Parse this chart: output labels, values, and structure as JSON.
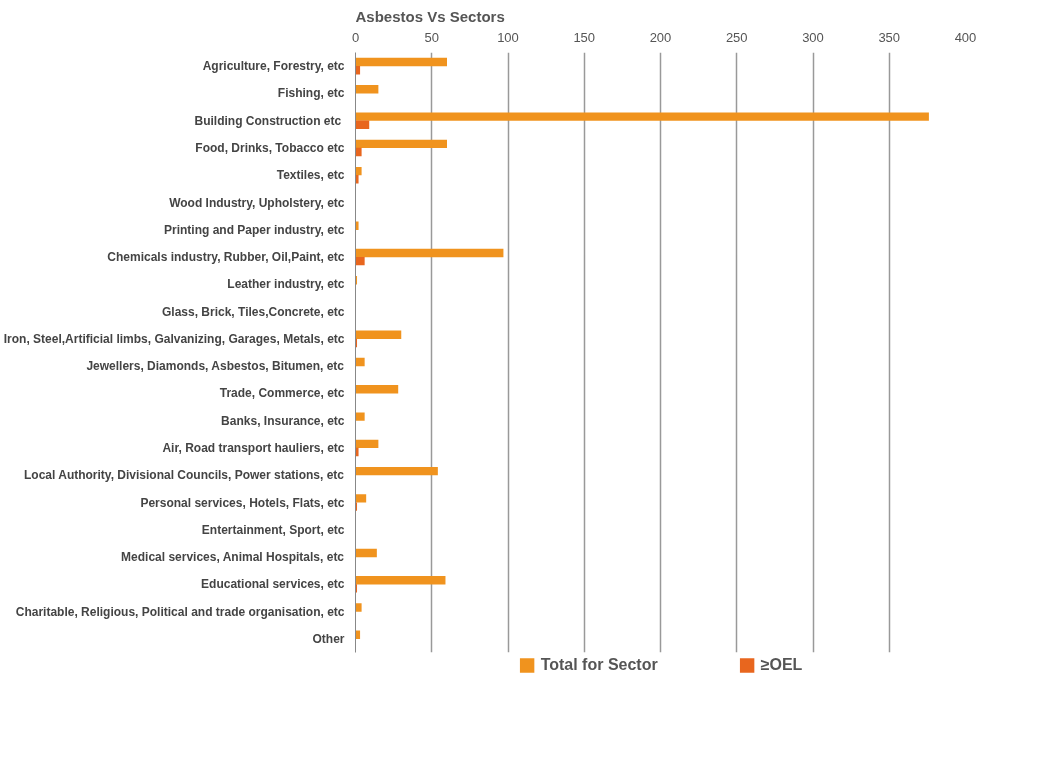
{
  "chart_data": {
    "type": "bar",
    "orientation": "horizontal",
    "title": "Asbestos Vs Sectors",
    "categories": [
      "Agriculture, Forestry, etc",
      "Fishing, etc",
      "Building Construction  etc",
      "Food, Drinks, Tobacco etc",
      "Textiles, etc",
      "Wood Industry, Upholstery, etc",
      "Printing and Paper industry, etc",
      "Chemicals industry, Rubber, Oil,Paint, etc",
      "Leather industry, etc",
      "Glass, Brick, Tiles,Concrete, etc",
      "Iron, Steel,Artificial limbs, Galvanizing, Garages, Metals, etc",
      "Jewellers, Diamonds, Asbestos, Bitumen, etc",
      "Trade, Commerce, etc",
      "Banks, Insurance, etc",
      "Air, Road transport hauliers, etc",
      "Local Authority, Divisional Councils, Power stations, etc",
      "Personal services, Hotels, Flats, etc",
      "Entertainment, Sport, etc",
      "Medical services, Animal Hospitals, etc",
      "Educational services, etc",
      "Charitable, Religious, Political and trade organisation, etc",
      "Other"
    ],
    "series": [
      {
        "name": "Total for Sector",
        "color": "#f0931e",
        "values": [
          60,
          15,
          376,
          60,
          4,
          0,
          2,
          97,
          1,
          0,
          30,
          6,
          28,
          6,
          15,
          54,
          7,
          0,
          14,
          59,
          4,
          3
        ]
      },
      {
        "name": "≥OEL",
        "color": "#e8661e",
        "values": [
          3,
          0,
          9,
          4,
          2,
          0,
          0,
          6,
          0,
          0,
          1,
          0,
          0,
          0,
          2,
          0,
          1,
          0,
          0,
          1,
          0,
          0
        ]
      }
    ],
    "xlim": [
      0,
      400
    ],
    "xticks": [
      0,
      50,
      100,
      150,
      200,
      250,
      300,
      350,
      400
    ],
    "grid": "x",
    "legend": "bottom"
  }
}
